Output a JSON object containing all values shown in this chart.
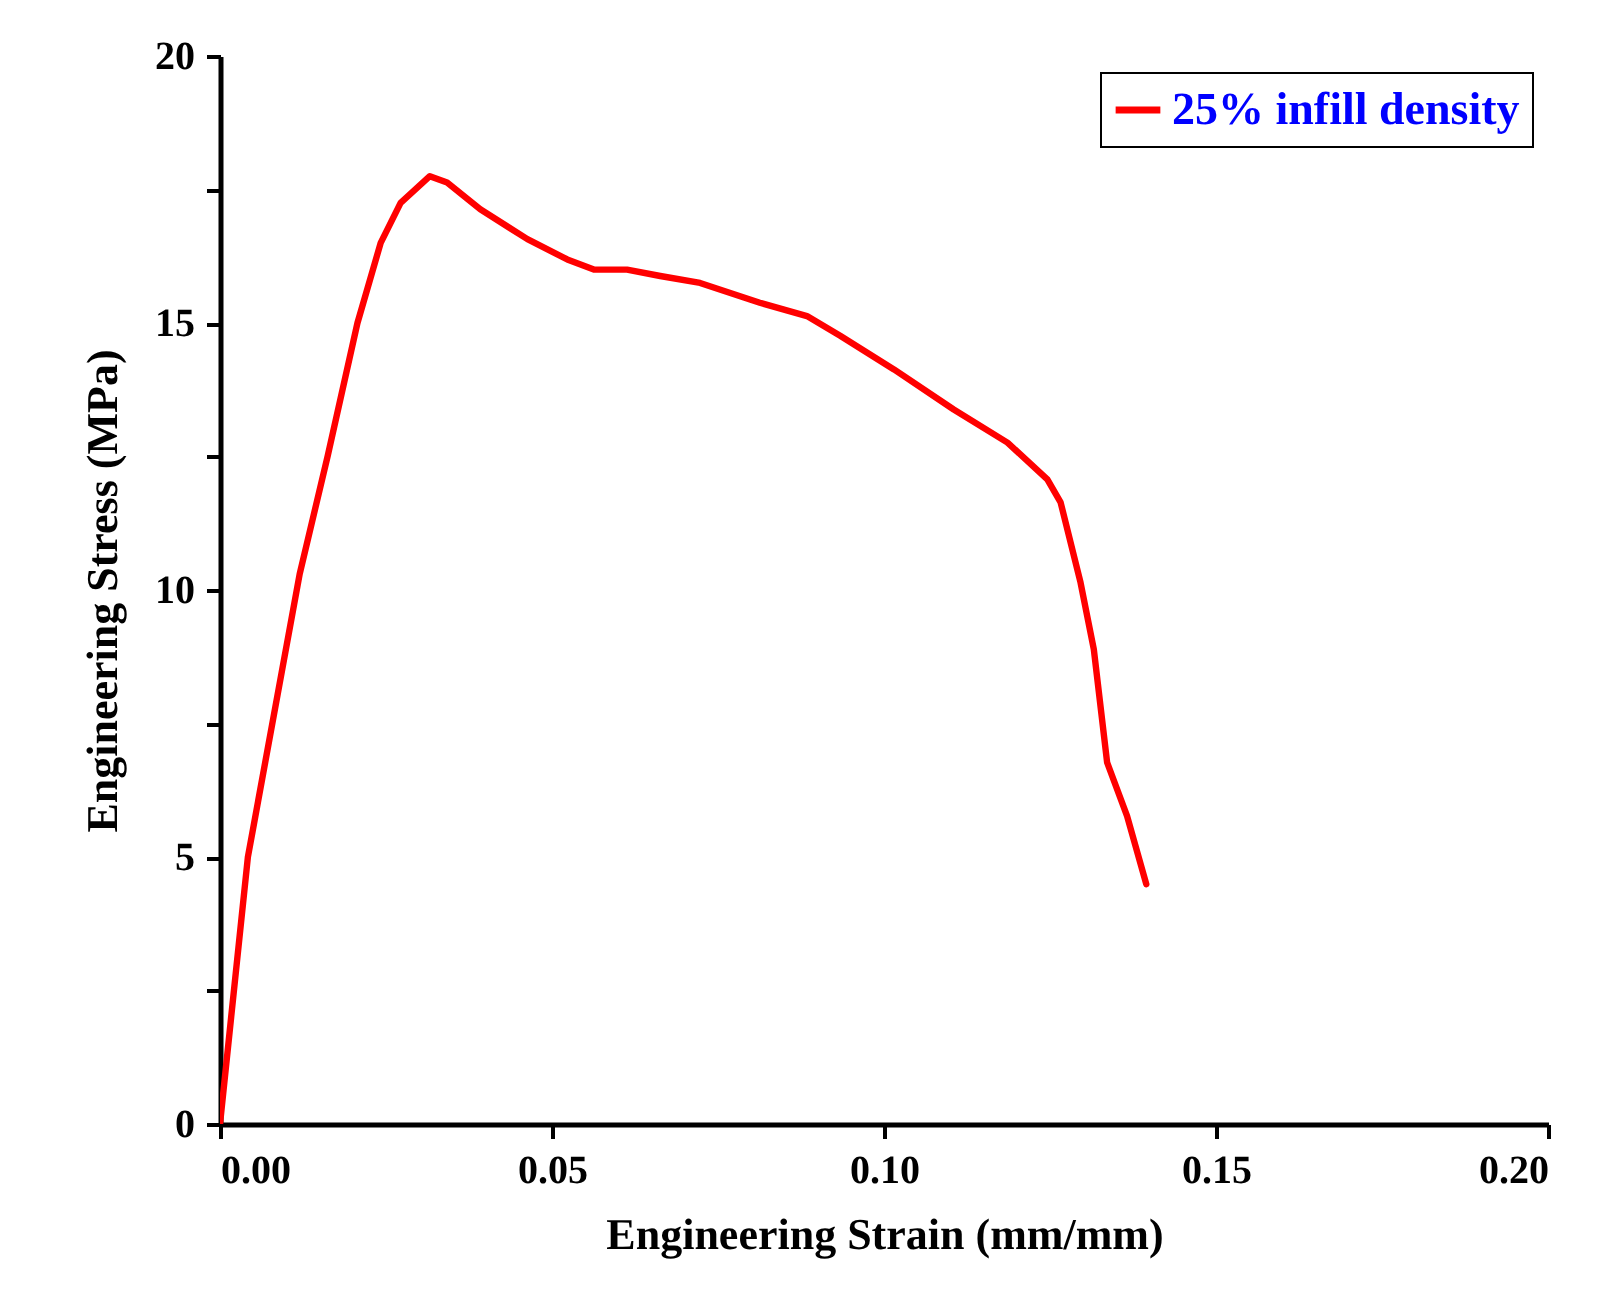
{
  "chart_data": {
    "type": "line",
    "xlabel": "Engineering Strain (mm/mm)",
    "ylabel": "Engineering Stress (MPa)",
    "xlim": [
      0,
      0.2
    ],
    "ylim": [
      0,
      20
    ],
    "xticks": [
      {
        "value": 0,
        "label": "0.00"
      },
      {
        "value": 0.05,
        "label": "0.05"
      },
      {
        "value": 0.1,
        "label": "0.10"
      },
      {
        "value": 0.15,
        "label": "0.15"
      },
      {
        "value": 0.2,
        "label": "0.20"
      }
    ],
    "yticks": [
      0,
      {
        "value": 2.5,
        "label": null
      },
      5,
      {
        "value": 7.5,
        "label": null
      },
      10,
      {
        "value": 12.5,
        "label": null
      },
      15,
      {
        "value": 17.5,
        "label": null
      },
      20
    ],
    "grid": false,
    "legend": "top right",
    "line_style": "solid",
    "marker": "none",
    "series": [
      {
        "name": "25% infill density",
        "color": "#ff0000",
        "x": [
          0,
          0.0042,
          0.012,
          0.0162,
          0.0207,
          0.0242,
          0.0272,
          0.0316,
          0.0342,
          0.0392,
          0.0463,
          0.0523,
          0.0563,
          0.0613,
          0.0663,
          0.0723,
          0.0813,
          0.0884,
          0.0934,
          0.1015,
          0.1105,
          0.1186,
          0.1246,
          0.1266,
          0.1296,
          0.1316,
          0.1336,
          0.1366,
          0.1395
        ],
        "values": [
          0,
          5,
          10.3,
          12.5,
          15,
          16.5,
          17.25,
          17.75,
          17.63,
          17.13,
          16.57,
          16.19,
          16.0,
          16.0,
          15.88,
          15.75,
          15.38,
          15.13,
          14.76,
          14.13,
          13.38,
          12.76,
          12.07,
          11.64,
          10.14,
          8.89,
          6.77,
          5.77,
          4.49
        ]
      }
    ]
  }
}
